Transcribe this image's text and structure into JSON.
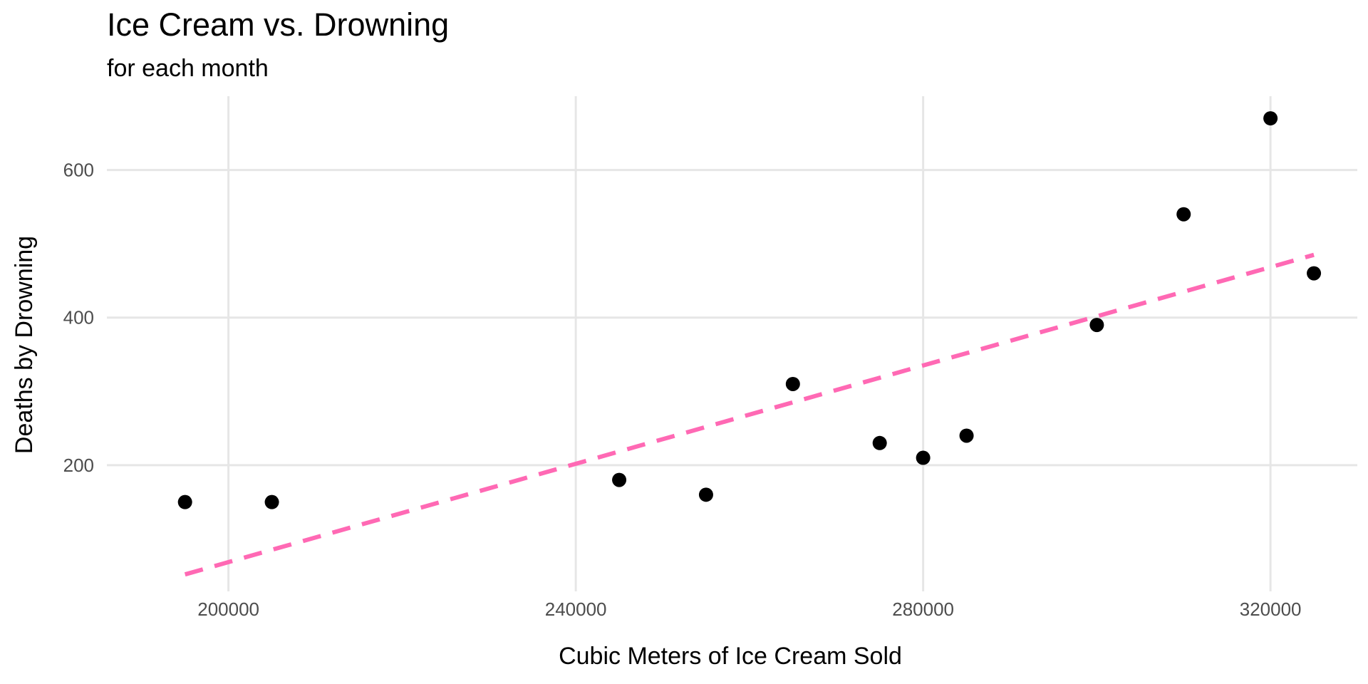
{
  "colors": {
    "points": "#000000",
    "trend_line": "#ff69b4",
    "grid": "#e6e6e6",
    "tick_text": "#4d4d4d"
  },
  "chart_data": {
    "type": "scatter",
    "title": "Ice Cream vs. Drowning",
    "subtitle": "for each month",
    "xlabel": "Cubic Meters of Ice Cream Sold",
    "ylabel": "Deaths by Drowning",
    "xlim": [
      186000,
      330000
    ],
    "ylim": [
      29000,
      700000
    ],
    "y_range": [
      29,
      700
    ],
    "x_ticks": [
      200000,
      240000,
      280000,
      320000
    ],
    "x_tick_labels": [
      "200000",
      "240000",
      "280000",
      "320000"
    ],
    "y_ticks": [
      200,
      400,
      600
    ],
    "y_tick_labels": [
      "200",
      "400",
      "600"
    ],
    "grid": true,
    "legend": "none",
    "points": [
      {
        "x": 195000,
        "y": 150
      },
      {
        "x": 205000,
        "y": 150
      },
      {
        "x": 245000,
        "y": 180
      },
      {
        "x": 255000,
        "y": 160
      },
      {
        "x": 265000,
        "y": 310
      },
      {
        "x": 275000,
        "y": 230
      },
      {
        "x": 280000,
        "y": 210
      },
      {
        "x": 285000,
        "y": 240
      },
      {
        "x": 300000,
        "y": 390
      },
      {
        "x": 310000,
        "y": 540
      },
      {
        "x": 320000,
        "y": 670
      },
      {
        "x": 325000,
        "y": 460
      }
    ],
    "trend_line": {
      "style": "dashed",
      "x": [
        195000,
        325000
      ],
      "y": [
        52,
        485
      ]
    }
  }
}
